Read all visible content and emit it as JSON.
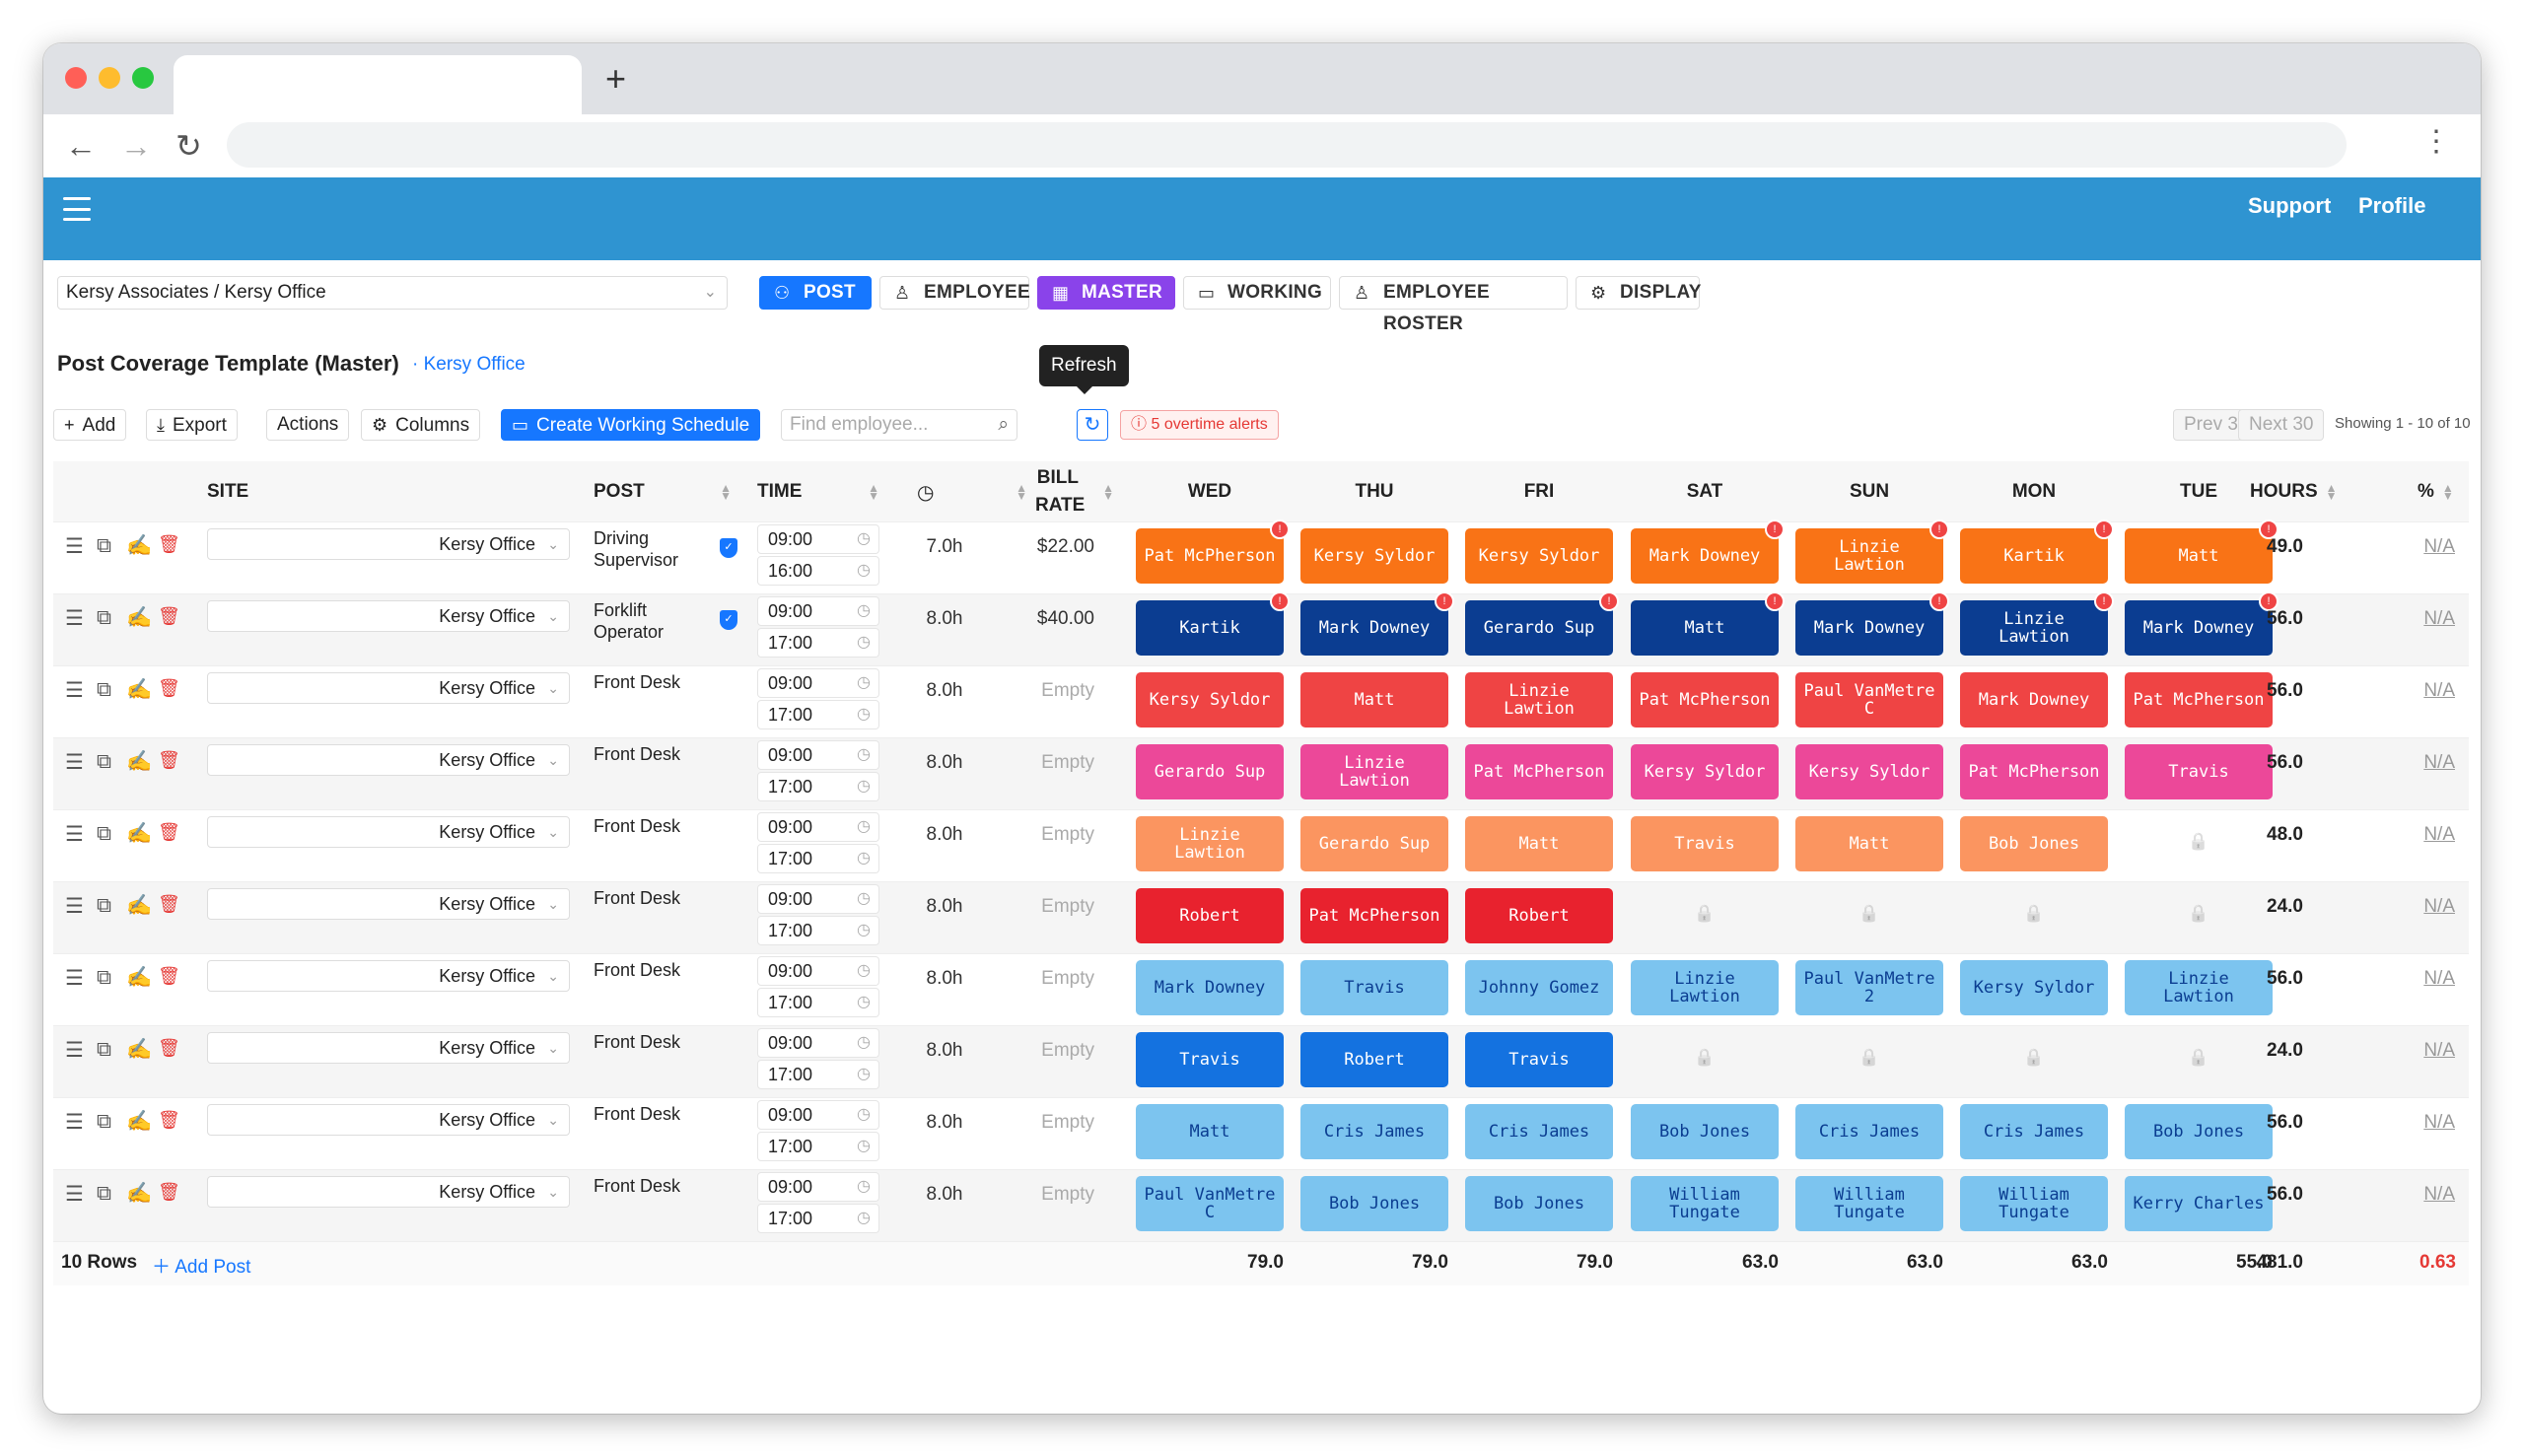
{
  "app": {
    "support": "Support",
    "profile": "Profile"
  },
  "site_select": "Kersy Associates / Kersy Office",
  "views": [
    {
      "label": "POST",
      "icon": "sitemap-icon",
      "style": "blue"
    },
    {
      "label": "EMPLOYEE",
      "icon": "user-icon",
      "style": "plain"
    },
    {
      "label": "MASTER",
      "icon": "grid-icon",
      "style": "purple"
    },
    {
      "label": "WORKING",
      "icon": "calendar-icon",
      "style": "plain"
    },
    {
      "label": "EMPLOYEE ROSTER",
      "icon": "users-icon",
      "style": "plain"
    },
    {
      "label": "DISPLAY",
      "icon": "gear-icon",
      "style": "plain"
    }
  ],
  "page": {
    "title": "Post Coverage Template (Master)",
    "site_link": "· Kersy Office",
    "tooltip": "Refresh"
  },
  "toolbar": {
    "add": "Add",
    "export": "Export",
    "actions": "Actions",
    "columns": "Columns",
    "create": "Create Working Schedule",
    "find_placeholder": "Find employee...",
    "alerts": "5 overtime alerts",
    "prev": "Prev 30",
    "next": "Next 30",
    "showing": "Showing 1 - 10 of 10"
  },
  "columns": {
    "site": "SITE",
    "post": "POST",
    "time": "TIME",
    "bill_rate": "BILL RATE",
    "days": [
      "WED",
      "THU",
      "FRI",
      "SAT",
      "SUN",
      "MON",
      "TUE"
    ],
    "hours": "HOURS",
    "pct": "%"
  },
  "colors": {
    "orange": "#f97316",
    "peach": "#fb9560",
    "navy": "#0b3d91",
    "red": "#ef4444",
    "brightred": "#e8222e",
    "pink": "#ec4899",
    "lightblue": "#7cc4ef",
    "blue": "#1472e0"
  },
  "rows": [
    {
      "site": "Kersy Office",
      "post": "Driving Supervisor",
      "verified": true,
      "start": "09:00",
      "end": "16:00",
      "duration": "7.0h",
      "rate": "$22.00",
      "hours": "49.0",
      "pct": "N/A",
      "color": "orange",
      "shifts": [
        {
          "name": "Pat McPherson",
          "alert": true
        },
        {
          "name": "Kersy Syldor",
          "alert": false
        },
        {
          "name": "Kersy Syldor",
          "alert": false
        },
        {
          "name": "Mark Downey",
          "alert": true
        },
        {
          "name": "Linzie Lawtion",
          "alert": true
        },
        {
          "name": "Kartik",
          "alert": true
        },
        {
          "name": "Matt",
          "alert": true
        }
      ]
    },
    {
      "site": "Kersy Office",
      "post": "Forklift Operator",
      "verified": true,
      "start": "09:00",
      "end": "17:00",
      "duration": "8.0h",
      "rate": "$40.00",
      "hours": "56.0",
      "pct": "N/A",
      "color": "navy",
      "shifts": [
        {
          "name": "Kartik",
          "alert": true
        },
        {
          "name": "Mark Downey",
          "alert": true
        },
        {
          "name": "Gerardo Sup",
          "alert": true
        },
        {
          "name": "Matt",
          "alert": true
        },
        {
          "name": "Mark Downey",
          "alert": true
        },
        {
          "name": "Linzie Lawtion",
          "alert": true
        },
        {
          "name": "Mark Downey",
          "alert": true
        }
      ]
    },
    {
      "site": "Kersy Office",
      "post": "Front Desk",
      "verified": false,
      "start": "09:00",
      "end": "17:00",
      "duration": "8.0h",
      "rate": "Empty",
      "hours": "56.0",
      "pct": "N/A",
      "color": "red",
      "shifts": [
        {
          "name": "Kersy Syldor"
        },
        {
          "name": "Matt"
        },
        {
          "name": "Linzie Lawtion"
        },
        {
          "name": "Pat McPherson"
        },
        {
          "name": "Paul VanMetre C"
        },
        {
          "name": "Mark Downey"
        },
        {
          "name": "Pat McPherson"
        }
      ]
    },
    {
      "site": "Kersy Office",
      "post": "Front Desk",
      "verified": false,
      "start": "09:00",
      "end": "17:00",
      "duration": "8.0h",
      "rate": "Empty",
      "hours": "56.0",
      "pct": "N/A",
      "color": "pink",
      "shifts": [
        {
          "name": "Gerardo Sup"
        },
        {
          "name": "Linzie Lawtion"
        },
        {
          "name": "Pat McPherson"
        },
        {
          "name": "Kersy Syldor"
        },
        {
          "name": "Kersy Syldor"
        },
        {
          "name": "Pat McPherson"
        },
        {
          "name": "Travis"
        }
      ]
    },
    {
      "site": "Kersy Office",
      "post": "Front Desk",
      "verified": false,
      "start": "09:00",
      "end": "17:00",
      "duration": "8.0h",
      "rate": "Empty",
      "hours": "48.0",
      "pct": "N/A",
      "color": "peach",
      "shifts": [
        {
          "name": "Linzie Lawtion"
        },
        {
          "name": "Gerardo Sup"
        },
        {
          "name": "Matt"
        },
        {
          "name": "Travis"
        },
        {
          "name": "Matt"
        },
        {
          "name": "Bob Jones"
        },
        null
      ]
    },
    {
      "site": "Kersy Office",
      "post": "Front Desk",
      "verified": false,
      "start": "09:00",
      "end": "17:00",
      "duration": "8.0h",
      "rate": "Empty",
      "hours": "24.0",
      "pct": "N/A",
      "color": "brightred",
      "shifts": [
        {
          "name": "Robert"
        },
        {
          "name": "Pat McPherson"
        },
        {
          "name": "Robert"
        },
        null,
        null,
        null,
        null
      ]
    },
    {
      "site": "Kersy Office",
      "post": "Front Desk",
      "verified": false,
      "start": "09:00",
      "end": "17:00",
      "duration": "8.0h",
      "rate": "Empty",
      "hours": "56.0",
      "pct": "N/A",
      "color": "lightblue",
      "shifts": [
        {
          "name": "Mark Downey"
        },
        {
          "name": "Travis"
        },
        {
          "name": "Johnny Gomez"
        },
        {
          "name": "Linzie Lawtion"
        },
        {
          "name": "Paul VanMetre 2"
        },
        {
          "name": "Kersy Syldor"
        },
        {
          "name": "Linzie Lawtion"
        }
      ]
    },
    {
      "site": "Kersy Office",
      "post": "Front Desk",
      "verified": false,
      "start": "09:00",
      "end": "17:00",
      "duration": "8.0h",
      "rate": "Empty",
      "hours": "24.0",
      "pct": "N/A",
      "color": "blue",
      "shifts": [
        {
          "name": "Travis"
        },
        {
          "name": "Robert"
        },
        {
          "name": "Travis"
        },
        null,
        null,
        null,
        null
      ]
    },
    {
      "site": "Kersy Office",
      "post": "Front Desk",
      "verified": false,
      "start": "09:00",
      "end": "17:00",
      "duration": "8.0h",
      "rate": "Empty",
      "hours": "56.0",
      "pct": "N/A",
      "color": "lightblue",
      "shifts": [
        {
          "name": "Matt"
        },
        {
          "name": "Cris James"
        },
        {
          "name": "Cris James"
        },
        {
          "name": "Bob Jones"
        },
        {
          "name": "Cris James"
        },
        {
          "name": "Cris James"
        },
        {
          "name": "Bob Jones"
        }
      ]
    },
    {
      "site": "Kersy Office",
      "post": "Front Desk",
      "verified": false,
      "start": "09:00",
      "end": "17:00",
      "duration": "8.0h",
      "rate": "Empty",
      "hours": "56.0",
      "pct": "N/A",
      "color": "lightblue",
      "shifts": [
        {
          "name": "Paul VanMetre C"
        },
        {
          "name": "Bob Jones"
        },
        {
          "name": "Bob Jones"
        },
        {
          "name": "William Tungate"
        },
        {
          "name": "William Tungate"
        },
        {
          "name": "William Tungate"
        },
        {
          "name": "Kerry Charles"
        }
      ]
    }
  ],
  "footer": {
    "rows": "10 Rows",
    "add_post": "Add Post",
    "day_totals": [
      "79.0",
      "79.0",
      "79.0",
      "63.0",
      "63.0",
      "63.0",
      "55.0"
    ],
    "hours_total": "481.0",
    "pct_total": "0.63"
  }
}
